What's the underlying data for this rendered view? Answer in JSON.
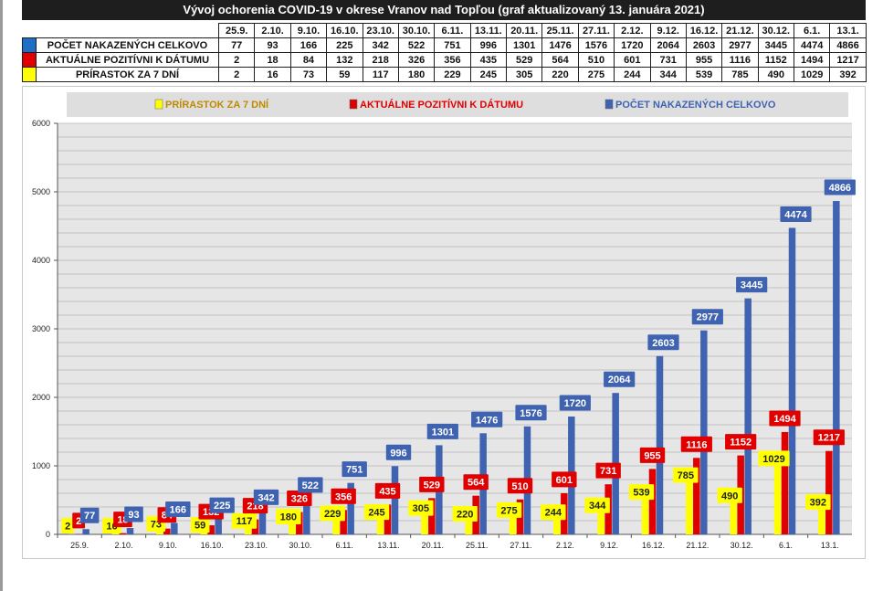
{
  "title": "Vývoj ochorenia COVID-19 v okrese Vranov nad Topľou (graf aktualizovaný 13. januára 2021)",
  "colors": {
    "blue": "#3f63b1",
    "red": "#e00000",
    "yellow": "#ffff00",
    "grid_bg": "#e6e6e6",
    "yellow_legend_text": "#c08a00",
    "red_legend_text": "#e00000",
    "blue_legend_text": "#3f63b1"
  },
  "table": {
    "dates": [
      "25.9.",
      "2.10.",
      "9.10.",
      "16.10.",
      "23.10.",
      "30.10.",
      "6.11.",
      "13.11.",
      "20.11.",
      "25.11.",
      "27.11.",
      "2.12.",
      "9.12.",
      "16.12.",
      "21.12.",
      "30.12.",
      "6.1.",
      "13.1."
    ],
    "rows": [
      {
        "label": "POČET NAKAZENÝCH CELKOVO",
        "color": "#1f6fc6",
        "values": [
          "77",
          "93",
          "166",
          "225",
          "342",
          "522",
          "751",
          "996",
          "1301",
          "1476",
          "1576",
          "1720",
          "2064",
          "2603",
          "2977",
          "3445",
          "4474",
          "4866"
        ]
      },
      {
        "label": "AKTUÁLNE POZITÍVNI K DÁTUMU",
        "color": "#e00000",
        "values": [
          "2",
          "18",
          "84",
          "132",
          "218",
          "326",
          "356",
          "435",
          "529",
          "564",
          "510",
          "601",
          "731",
          "955",
          "1116",
          "1152",
          "1494",
          "1217"
        ]
      },
      {
        "label": "PRÍRASTOK ZA 7 DNÍ",
        "color": "#ffff00",
        "values": [
          "2",
          "16",
          "73",
          "59",
          "117",
          "180",
          "229",
          "245",
          "305",
          "220",
          "275",
          "244",
          "344",
          "539",
          "785",
          "490",
          "1029",
          "392"
        ]
      }
    ]
  },
  "chart_data": {
    "type": "bar",
    "categories": [
      "25.9.",
      "2.10.",
      "9.10.",
      "16.10.",
      "23.10.",
      "30.10.",
      "6.11.",
      "13.11.",
      "20.11.",
      "25.11.",
      "27.11.",
      "2.12.",
      "9.12.",
      "16.12.",
      "21.12.",
      "30.12.",
      "6.1.",
      "13.1."
    ],
    "series": [
      {
        "name": "PRÍRASTOK ZA 7 DNÍ",
        "color": "#ffff00",
        "values": [
          2,
          16,
          73,
          59,
          117,
          180,
          229,
          245,
          305,
          220,
          275,
          244,
          344,
          539,
          785,
          490,
          1029,
          392
        ]
      },
      {
        "name": "AKTUÁLNE POZITÍVNI K DÁTUMU",
        "color": "#e00000",
        "values": [
          2,
          18,
          84,
          132,
          218,
          326,
          356,
          435,
          529,
          564,
          510,
          601,
          731,
          955,
          1116,
          1152,
          1494,
          1217
        ]
      },
      {
        "name": "POČET NAKAZENÝCH CELKOVO",
        "color": "#3f63b1",
        "values": [
          77,
          93,
          166,
          225,
          342,
          522,
          751,
          996,
          1301,
          1476,
          1576,
          1720,
          2064,
          2603,
          2977,
          3445,
          4474,
          4866
        ]
      }
    ],
    "yticks": [
      0,
      1000,
      2000,
      3000,
      4000,
      5000,
      6000
    ],
    "ylim": [
      0,
      6000
    ],
    "minor_grid_step": 200,
    "legend_position": "top",
    "grid": true
  }
}
